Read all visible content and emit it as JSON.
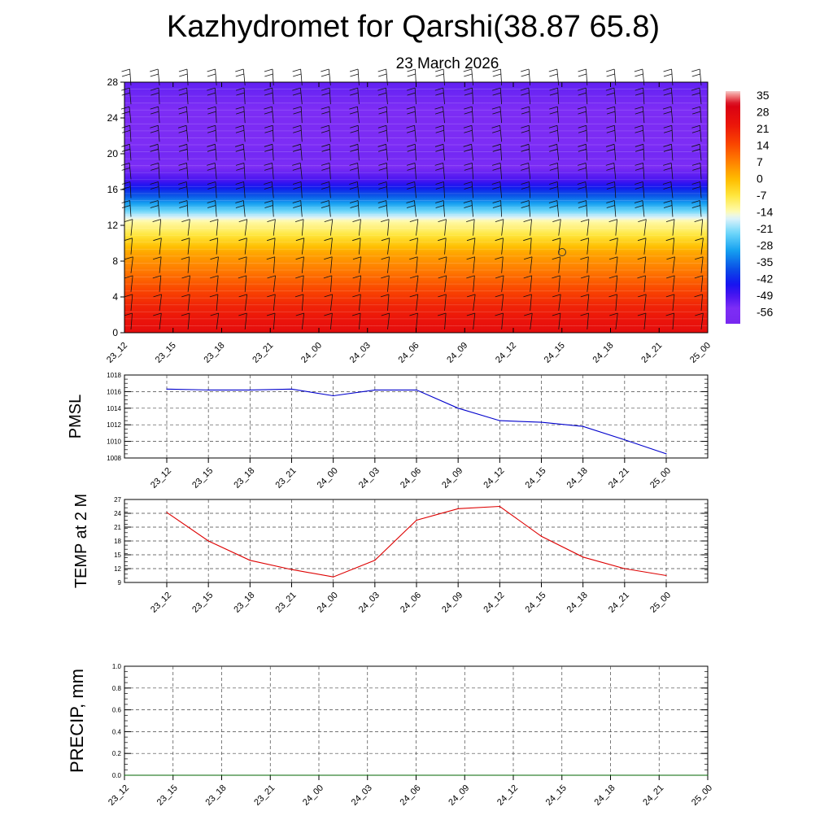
{
  "title": "Kazhydromet for Qarshi(38.87 65.8)",
  "subtitle": "23 March 2026",
  "chart_data": [
    {
      "type": "heatmap",
      "name": "temperature-wind-profile",
      "xlabel": "",
      "ylabel": "",
      "x_ticks": [
        "23_12",
        "23_15",
        "23_18",
        "23_21",
        "24_00",
        "24_03",
        "24_06",
        "24_09",
        "24_12",
        "24_15",
        "24_18",
        "24_21",
        "25_00"
      ],
      "y_ticks": [
        0,
        4,
        8,
        12,
        16,
        20,
        24,
        28
      ],
      "ylim": [
        0,
        28
      ],
      "colorbar_ticks": [
        "35",
        "28",
        "21",
        "14",
        "7",
        "0",
        "-7",
        "-14",
        "-21",
        "-28",
        "-35",
        "-42",
        "-49",
        "-56"
      ],
      "colorbar_range": [
        -63,
        42
      ],
      "temperature_by_level": [
        {
          "y": 0,
          "t": 30
        },
        {
          "y": 3,
          "t": 24
        },
        {
          "y": 6,
          "t": 14
        },
        {
          "y": 9,
          "t": 5
        },
        {
          "y": 11.5,
          "t": -8
        },
        {
          "y": 12.5,
          "t": -12
        },
        {
          "y": 15,
          "t": -35
        },
        {
          "y": 17,
          "t": -50
        },
        {
          "y": 18.5,
          "t": -56
        },
        {
          "y": 20,
          "t": -55
        },
        {
          "y": 23,
          "t": -58
        },
        {
          "y": 28,
          "t": -53
        }
      ]
    },
    {
      "type": "line",
      "name": "pmsl",
      "ylabel": "PMSL",
      "x": [
        "23_12",
        "23_15",
        "23_18",
        "23_21",
        "24_00",
        "24_03",
        "24_06",
        "24_09",
        "24_12",
        "24_15",
        "24_18",
        "24_21",
        "25_00"
      ],
      "values": [
        1016.3,
        1016.2,
        1016.2,
        1016.3,
        1015.5,
        1016.2,
        1016.2,
        1014.0,
        1012.5,
        1012.3,
        1011.8,
        1010.2,
        1008.5
      ],
      "ylim": [
        1008,
        1018
      ],
      "y_ticks": [
        1008,
        1010,
        1012,
        1014,
        1016,
        1018
      ],
      "color": "#0000cc"
    },
    {
      "type": "line",
      "name": "temp-2m",
      "ylabel": "TEMP at 2 M",
      "x": [
        "23_12",
        "23_15",
        "23_18",
        "23_21",
        "24_00",
        "24_03",
        "24_06",
        "24_09",
        "24_12",
        "24_15",
        "24_18",
        "24_21",
        "25_00"
      ],
      "values": [
        24.2,
        18.0,
        13.8,
        11.8,
        10.2,
        13.8,
        22.5,
        25.0,
        25.5,
        19.0,
        14.5,
        12.0,
        10.5
      ],
      "ylim": [
        9,
        27
      ],
      "y_ticks": [
        9,
        12,
        15,
        18,
        21,
        24,
        27
      ],
      "color": "#dd0000"
    },
    {
      "type": "line",
      "name": "precip",
      "ylabel": "PRECIP, mm",
      "x": [
        "23_12",
        "23_15",
        "23_18",
        "23_21",
        "24_00",
        "24_03",
        "24_06",
        "24_09",
        "24_12",
        "24_15",
        "24_18",
        "24_21",
        "25_00"
      ],
      "values": [
        0,
        0,
        0,
        0,
        0,
        0,
        0,
        0,
        0,
        0,
        0,
        0,
        0
      ],
      "ylim": [
        0,
        1
      ],
      "y_ticks": [
        "0.0",
        "0.2",
        "0.4",
        "0.6",
        "0.8",
        "1.0"
      ],
      "color": "#006600"
    }
  ]
}
